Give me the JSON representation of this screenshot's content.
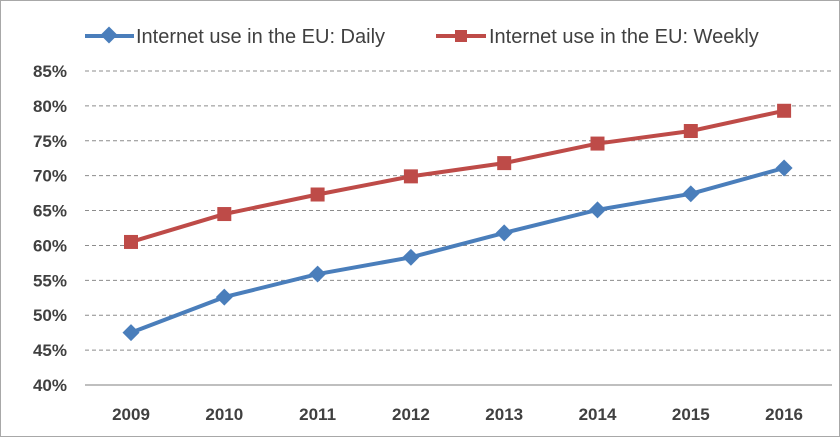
{
  "chart_data": {
    "type": "line",
    "title": "",
    "xlabel": "",
    "ylabel": "",
    "categories": [
      "2009",
      "2010",
      "2011",
      "2012",
      "2013",
      "2014",
      "2015",
      "2016"
    ],
    "ylim": [
      40,
      85
    ],
    "yticks": [
      40,
      45,
      50,
      55,
      60,
      65,
      70,
      75,
      80,
      85
    ],
    "ytick_labels": [
      "40%",
      "45%",
      "50%",
      "55%",
      "60%",
      "65%",
      "70%",
      "75%",
      "80%",
      "85%"
    ],
    "grid": "horizontal dashed",
    "legend_position": "top",
    "series": [
      {
        "name": "Internet use in the EU: Daily",
        "color": "#4a7ebb",
        "marker": "diamond",
        "values": [
          47.5,
          52.6,
          55.9,
          58.3,
          61.8,
          65.1,
          67.4,
          71.1
        ]
      },
      {
        "name": "Internet use in the EU: Weekly",
        "color": "#be4b48",
        "marker": "square",
        "values": [
          60.5,
          64.5,
          67.3,
          69.9,
          71.8,
          74.6,
          76.4,
          79.3
        ]
      }
    ]
  }
}
